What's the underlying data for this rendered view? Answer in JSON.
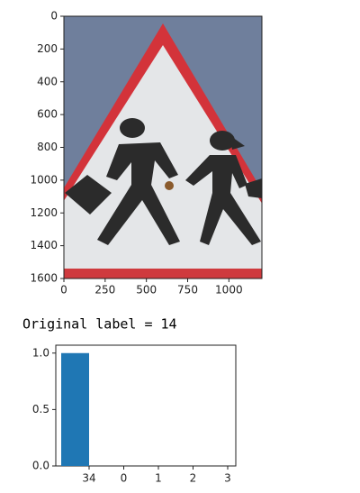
{
  "chart_data": [
    {
      "type": "image",
      "xlim": [
        0,
        1200
      ],
      "ylim": [
        1600,
        0
      ],
      "xticks": [
        0,
        250,
        500,
        750,
        1000
      ],
      "yticks": [
        0,
        200,
        400,
        600,
        800,
        1000,
        1200,
        1400,
        1600
      ]
    },
    {
      "type": "bar",
      "categories": [
        "34",
        "0",
        "1",
        "2",
        "3"
      ],
      "values": [
        1,
        0,
        0,
        0,
        0
      ],
      "color": "#1f77b4",
      "ylim": [
        0,
        1.07
      ],
      "yticks": [
        {
          "value": 0,
          "label": "0.0"
        },
        {
          "value": 0.5,
          "label": "0.5"
        },
        {
          "value": 1,
          "label": "1.0"
        }
      ]
    }
  ],
  "output_text": "Original label = 14"
}
